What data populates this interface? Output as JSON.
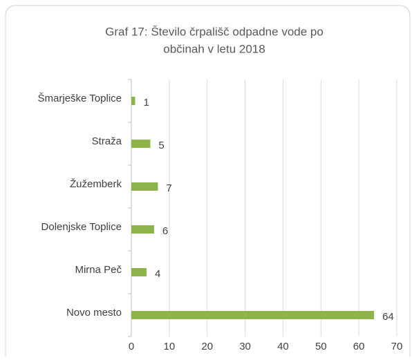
{
  "chart_data": {
    "type": "hbar",
    "title": [
      "Graf 17: Število črpališč odpadne vode po",
      "občinah v letu 2018"
    ],
    "categories": [
      "Šmarješke Toplice",
      "Straža",
      "Žužemberk",
      "Dolenjske Toplice",
      "Mirna Peč",
      "Novo mesto"
    ],
    "values": [
      1,
      5,
      7,
      6,
      4,
      64
    ],
    "color": "#8cb44a",
    "xlim": [
      0,
      70
    ],
    "xticks": [
      0,
      10,
      20,
      30,
      40,
      50,
      60,
      70
    ],
    "grid": true
  }
}
